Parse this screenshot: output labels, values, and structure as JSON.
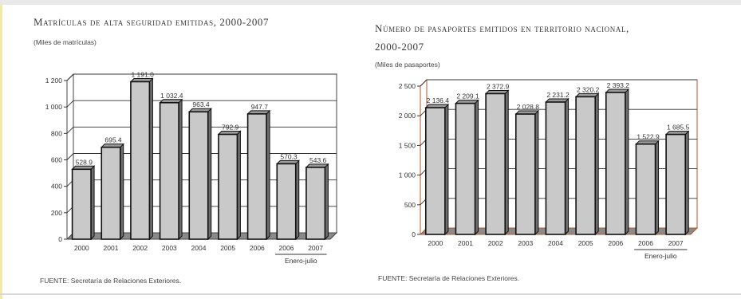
{
  "chart_data": [
    {
      "type": "bar",
      "title": "Matrículas de alta seguridad emitidas, 2000-2007",
      "subtitle": "(Miles de matrículas)",
      "source": "FUENTE: Secretaría de Relaciones Exteriores.",
      "xlabel": "",
      "ylabel": "",
      "categories": [
        "2000",
        "2001",
        "2002",
        "2003",
        "2004",
        "2005",
        "2006",
        "2006",
        "2007"
      ],
      "values": [
        528.9,
        695.4,
        1191.0,
        1032.4,
        963.4,
        792.9,
        947.7,
        570.3,
        543.6
      ],
      "value_labels": [
        "528.9",
        "695.4",
        "1 191.0",
        "1 032.4",
        "963.4",
        "792.9",
        "947.7",
        "570.3",
        "543.6"
      ],
      "ylim": [
        0,
        1200
      ],
      "yticks": [
        0,
        200,
        400,
        600,
        800,
        1000,
        1200
      ],
      "ytick_labels": [
        "0",
        "200",
        "400",
        "600",
        "800",
        "1 000",
        "1 200"
      ],
      "period_note": "Enero-julio",
      "period_note_start_index": 7,
      "grid": true,
      "colors": {
        "bar": "#c9c9c9",
        "bar_edge": "#111111",
        "frame": "#444444"
      }
    },
    {
      "type": "bar",
      "title": "Número de pasaportes emitidos en territorio nacional, 2000-2007",
      "title_lines": [
        "Número de pasaportes emitidos en territorio nacional,",
        "2000-2007"
      ],
      "subtitle": "(Miles de pasaportes)",
      "source": "FUENTE: Secretaría de Relaciones Exteriores.",
      "xlabel": "",
      "ylabel": "",
      "categories": [
        "2000",
        "2001",
        "2002",
        "2003",
        "2004",
        "2005",
        "2006",
        "2006",
        "2007"
      ],
      "values": [
        2136.4,
        2209.1,
        2372.9,
        2028.8,
        2231.2,
        2320.2,
        2393.2,
        1522.9,
        1685.5
      ],
      "value_labels": [
        "2 136.4",
        "2 209.1",
        "2 372.9",
        "2 028.8",
        "2 231.2",
        "2 320.2",
        "2 393.2",
        "1 522.9",
        "1 685.5"
      ],
      "ylim": [
        0,
        2500
      ],
      "yticks": [
        0,
        500,
        1000,
        1500,
        2000,
        2500
      ],
      "ytick_labels": [
        "0",
        "500",
        "1 000",
        "1 500",
        "2 000",
        "2 500"
      ],
      "period_note": "Enero-julio",
      "period_note_start_index": 7,
      "grid": true,
      "colors": {
        "bar": "#c9c9c9",
        "bar_edge": "#111111",
        "frame": "#b5562a"
      }
    }
  ]
}
